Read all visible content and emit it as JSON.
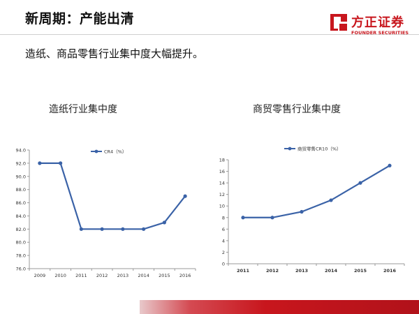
{
  "page": {
    "title": "新周期：产能出清",
    "subtitle": "造纸、商品零售行业集中度大幅提升。"
  },
  "logo": {
    "name": "方正证券",
    "sub": "FOUNDER SECURITIES",
    "color": "#c8161d"
  },
  "panels": [
    {
      "title": "造纸行业集中度"
    },
    {
      "title": "商贸零售行业集中度"
    }
  ],
  "chart_data": [
    {
      "type": "line",
      "title": "造纸行业集中度",
      "categories": [
        "2009",
        "2010",
        "2011",
        "2012",
        "2013",
        "2014",
        "2015",
        "2016"
      ],
      "series": [
        {
          "name": "CR4（%）",
          "values": [
            92.0,
            92.0,
            82.0,
            82.0,
            82.0,
            82.0,
            83.0,
            87.0
          ]
        }
      ],
      "ylim": [
        76.0,
        94.0
      ],
      "yticks": [
        "76.0",
        "78.0",
        "80.0",
        "82.0",
        "84.0",
        "86.0",
        "88.0",
        "90.0",
        "92.0",
        "94.0"
      ],
      "legend": "top-center",
      "grid": false,
      "color": "#3a62a7"
    },
    {
      "type": "line",
      "title": "商贸零售行业集中度",
      "categories": [
        "2011",
        "2012",
        "2013",
        "2014",
        "2015",
        "2016"
      ],
      "series": [
        {
          "name": "商贸零售CR10（%）",
          "values": [
            8,
            8,
            9,
            11,
            14,
            17
          ]
        }
      ],
      "ylim": [
        0,
        18
      ],
      "yticks": [
        "0",
        "2",
        "4",
        "6",
        "8",
        "10",
        "12",
        "14",
        "16",
        "18"
      ],
      "legend": "top-center",
      "grid": false,
      "color": "#3a62a7"
    }
  ]
}
